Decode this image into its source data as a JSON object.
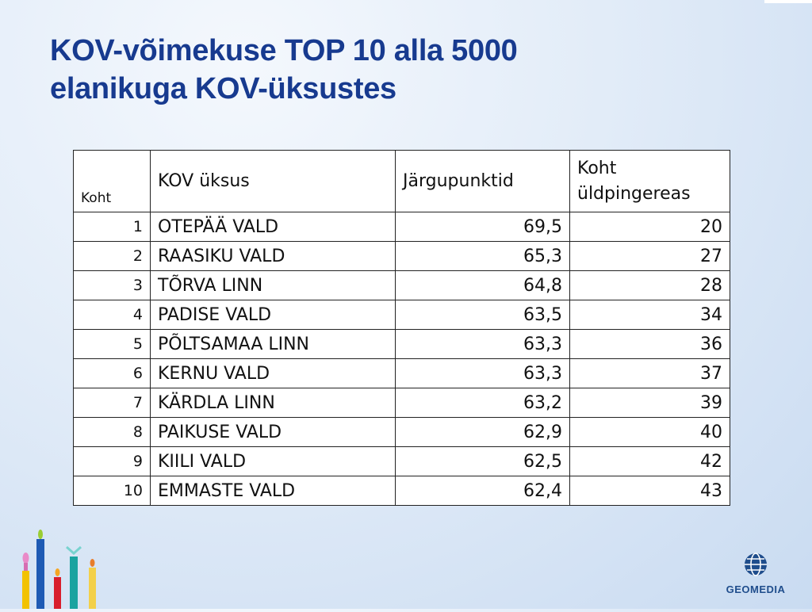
{
  "slide": {
    "title_line1": "KOV-võimekuse TOP 10 alla 5000",
    "title_line2": "elanikuga KOV-üksustes"
  },
  "table": {
    "headers": {
      "rank": "Koht",
      "unit": "KOV üksus",
      "points": "Järgupunktid",
      "overall_line1": "Koht",
      "overall_line2": "üldpingereas"
    },
    "rows": [
      {
        "rank": "1",
        "unit": "OTEPÄÄ VALD",
        "points": "69,5",
        "overall": "20"
      },
      {
        "rank": "2",
        "unit": "RAASIKU VALD",
        "points": "65,3",
        "overall": "27"
      },
      {
        "rank": "3",
        "unit": "TÕRVA LINN",
        "points": "64,8",
        "overall": "28"
      },
      {
        "rank": "4",
        "unit": "PADISE VALD",
        "points": "63,5",
        "overall": "34"
      },
      {
        "rank": "5",
        "unit": "PÕLTSAMAA LINN",
        "points": "63,3",
        "overall": "36"
      },
      {
        "rank": "6",
        "unit": "KERNU VALD",
        "points": "63,3",
        "overall": "37"
      },
      {
        "rank": "7",
        "unit": "KÄRDLA LINN",
        "points": "63,2",
        "overall": "39"
      },
      {
        "rank": "8",
        "unit": "PAIKUSE VALD",
        "points": "62,9",
        "overall": "40"
      },
      {
        "rank": "9",
        "unit": "KIILI VALD",
        "points": "62,5",
        "overall": "42"
      },
      {
        "rank": "10",
        "unit": "EMMASTE VALD",
        "points": "62,4",
        "overall": "43"
      }
    ]
  },
  "logo": {
    "icon": "globe-icon",
    "text": "GEOMEDIA"
  },
  "decoration": {
    "icon": "candles-icon"
  },
  "colors": {
    "title": "#173a8f",
    "logo": "#1f4d8c"
  }
}
